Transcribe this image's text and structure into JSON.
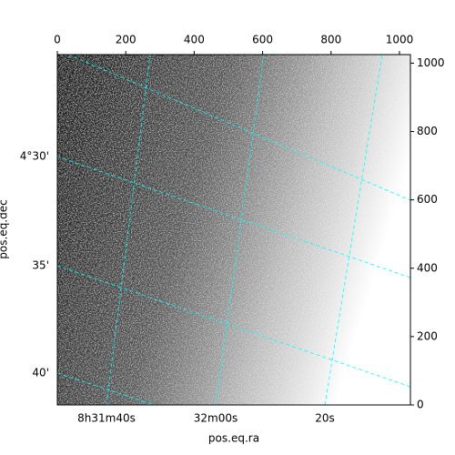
{
  "chart_data": {
    "type": "image",
    "xlabel": "pos.eq.ra",
    "ylabel": "pos.eq.dec",
    "xlim": [
      0,
      1032
    ],
    "ylim": [
      0,
      1025
    ],
    "xticks": [
      0,
      200,
      400,
      600,
      800,
      1000
    ],
    "yticks": [
      0,
      200,
      400,
      600,
      800,
      1000
    ],
    "ra_tick_labels": [
      "8h31m40s",
      "32m00s",
      "20s"
    ],
    "dec_tick_labels": [
      "4°30'",
      "35'",
      "40'"
    ],
    "grid_color": "#00ffff"
  }
}
